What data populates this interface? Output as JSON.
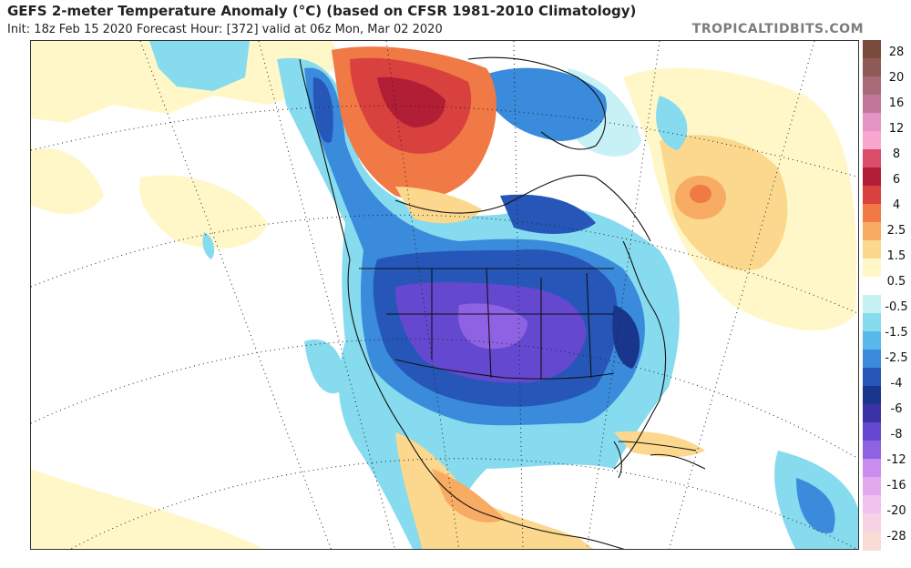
{
  "header": {
    "title": "GEFS 2-meter Temperature Anomaly (°C) (based on CFSR 1981-2010 Climatology)",
    "subtitle": "Init: 18z Feb 15 2020   Forecast Hour: [372]   valid at 06z Mon, Mar 02 2020",
    "credit": "TROPICALTIDBITS.COM"
  },
  "colorbar": {
    "labels": [
      "28",
      "20",
      "16",
      "12",
      "8",
      "6",
      "4",
      "2.5",
      "1.5",
      "0.5",
      "-0.5",
      "-1.5",
      "-2.5",
      "-4",
      "-6",
      "-8",
      "-12",
      "-16",
      "-20",
      "-28"
    ],
    "colors": [
      "#7a4a3a",
      "#8f5a55",
      "#a86a78",
      "#c0779a",
      "#e394c2",
      "#f6a6cf",
      "#d94d6a",
      "#b21e35",
      "#d8413d",
      "#f07945",
      "#f7ab63",
      "#fbd88e",
      "#fff7c8",
      "#ffffff",
      "#c8f1f5",
      "#86dbef",
      "#58b8eb",
      "#3a8bdc",
      "#2657b8",
      "#1a358c",
      "#3d31a6",
      "#6448cf",
      "#8f62e3",
      "#c98cef",
      "#e2aaee",
      "#f0c2ee",
      "#f7d2e6",
      "#fadcd6"
    ]
  },
  "map": {
    "land_color": "#ffffff",
    "warm_colors": [
      "#fff7c8",
      "#fbd88e",
      "#f7ab63",
      "#f07945",
      "#d8413d",
      "#b21e35"
    ],
    "cold_colors": [
      "#c8f1f5",
      "#86dbef",
      "#58b8eb",
      "#3a8bdc",
      "#2657b8",
      "#1a358c",
      "#6448cf",
      "#8f62e3"
    ]
  }
}
